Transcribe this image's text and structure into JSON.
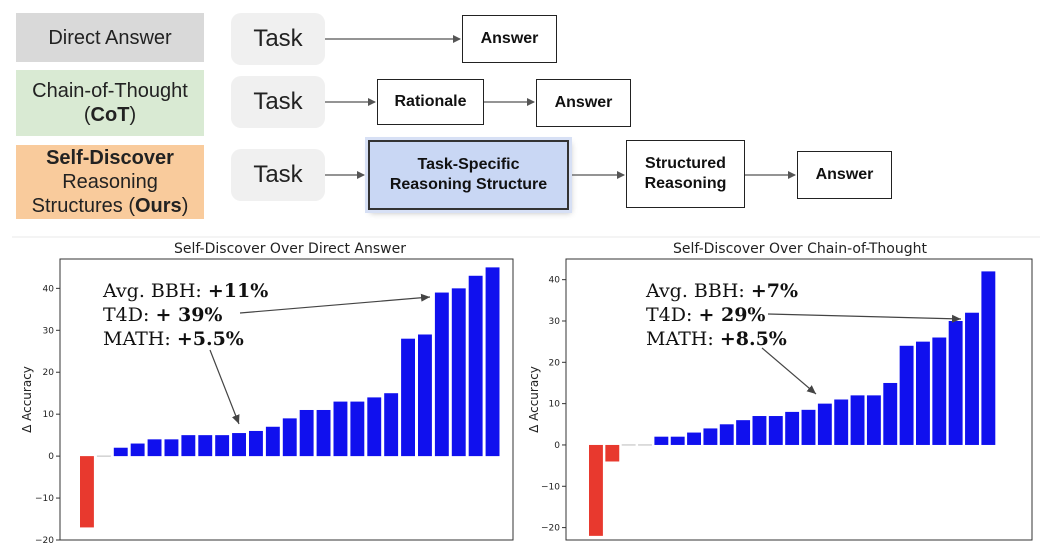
{
  "diagram": {
    "methods": [
      {
        "label": "Direct Answer"
      },
      {
        "label_line1": "Chain-of-Thought",
        "label_line2_pre": "(",
        "label_line2_bold": "CoT",
        "label_line2_post": ")"
      },
      {
        "label_line1": "Self-Discover",
        "label_line2": "Reasoning",
        "label_line3_pre": "Structures (",
        "label_line3_bold": "Ours",
        "label_line3_post": ")"
      }
    ],
    "task_label": "Task",
    "answer_label": "Answer",
    "rationale_label": "Rationale",
    "structure_line1": "Task-Specific",
    "structure_line2": "Reasoning Structure",
    "structured_line1": "Structured",
    "structured_line2": "Reasoning",
    "colors": {
      "direct": "#d9d9d9",
      "cot": "#d9ead3",
      "ours": "#f9cb9c",
      "structure": "#c9d7f4"
    }
  },
  "chart_data": [
    {
      "type": "bar",
      "title": "Self-Discover Over Direct Answer",
      "ylabel": "Δ Accuracy",
      "ylim": [
        -20,
        47
      ],
      "yticks": [
        -20,
        -10,
        0,
        10,
        20,
        30,
        40
      ],
      "values": [
        -17,
        0,
        2,
        3,
        4,
        4,
        5,
        5,
        5,
        5.5,
        6,
        7,
        9,
        11,
        11,
        13,
        13,
        14,
        15,
        28,
        29,
        39,
        40,
        43,
        45
      ],
      "colors": {
        "negative": "#e8392e",
        "positive": "#1010ee"
      },
      "annotation": {
        "bbh_pre": "Avg. BBH: ",
        "bbh_val": "+11%",
        "t4d_pre": "T4D: ",
        "t4d_val": "+ 39%",
        "math_pre": "MATH: ",
        "math_val": "+5.5%"
      }
    },
    {
      "type": "bar",
      "title": "Self-Discover Over Chain-of-Thought",
      "ylabel": "Δ Accuracy",
      "ylim": [
        -23,
        45
      ],
      "yticks": [
        -20,
        -10,
        0,
        10,
        20,
        30,
        40
      ],
      "values": [
        -22,
        -4,
        0,
        0,
        2,
        2,
        3,
        4,
        5,
        6,
        7,
        7,
        8,
        8.5,
        10,
        11,
        12,
        12,
        15,
        24,
        25,
        26,
        30,
        32,
        42
      ],
      "colors": {
        "negative": "#e8392e",
        "positive": "#1010ee"
      },
      "annotation": {
        "bbh_pre": "Avg. BBH: ",
        "bbh_val": "+7%",
        "t4d_pre": "T4D: ",
        "t4d_val": "+ 29%",
        "math_pre": "MATH: ",
        "math_val": "+8.5%"
      }
    }
  ]
}
